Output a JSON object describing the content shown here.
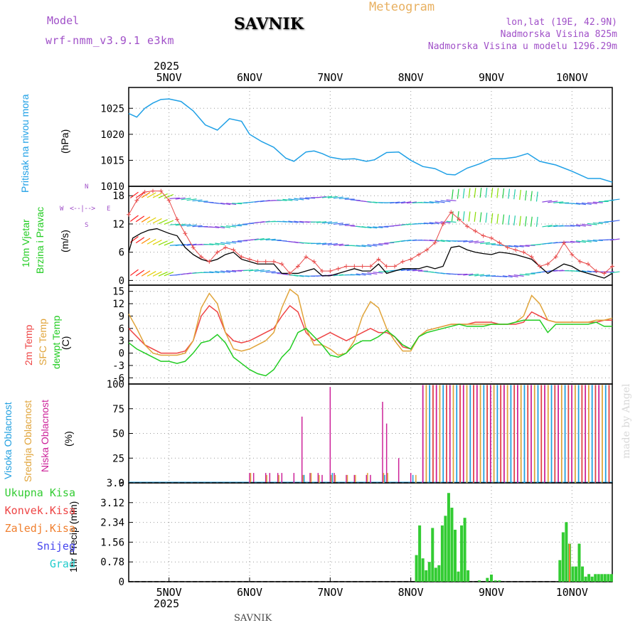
{
  "header": {
    "model_label": "Model",
    "model_name": "wrf-nmm_v3.9.1 e3km",
    "station": "SAVNIK",
    "product": "Meteogram",
    "location": "lon,lat (19E, 42.9N)",
    "elevation": "Nadmorska Visina 825m",
    "model_elevation": "Nadmorska Visina u modelu 1296.29m",
    "year_top": "2025",
    "year_bottom": "2025",
    "footer_station": "SAVNIK",
    "watermark": "made by Angel"
  },
  "colors": {
    "pressure": "#1fa0e6",
    "wind_speed": "#000000",
    "wind_gust": "#e84848",
    "temp2m": "#ee4444",
    "sfc": "#e0a43a",
    "dew": "#22cc22",
    "high_cloud": "#22a0e0",
    "mid_cloud": "#e0a43a",
    "low_cloud": "#cc2299",
    "precip": "#33cc33",
    "conv": "#ee4444",
    "frozen": "#f08030",
    "snow": "#4444ee",
    "grad": "#22cccc"
  },
  "labels": {
    "pressure": [
      "Pritisak na nivou mora",
      "(hPa)"
    ],
    "wind": [
      "10m Vjetar",
      "Brzina i Pravac",
      "(m/s)"
    ],
    "temp": [
      "2m Temp",
      "SFC Temp",
      "dewpt Temp",
      "(C)"
    ],
    "cloud": [
      "Visoka Oblacnost",
      "Srednja Oblacnost",
      "Niska Oblacnost",
      "(%)"
    ],
    "precip_axis": "1hr Precip (mm)",
    "precip_legend": [
      "Ukupna Kisa",
      "Konvek.Kisa",
      "Zaledj.Kisa",
      "Snijeg",
      "Grad"
    ],
    "compass": {
      "n": "N",
      "s": "S",
      "w": "W",
      "e": "E",
      "arrows": "<--|-->"
    }
  },
  "chart_data": [
    {
      "type": "line",
      "title": "Pritisak na nivou mora",
      "ylabel": "(hPa)",
      "x_days": [
        "5NOV",
        "6NOV",
        "7NOV",
        "8NOV",
        "9NOV",
        "10NOV"
      ],
      "x_start_day": 4.5,
      "x_end_day": 10.5,
      "ylim": [
        1010,
        1029
      ],
      "yticks": [
        1010,
        1015,
        1020,
        1025
      ],
      "x": [
        4.5,
        4.6,
        4.7,
        4.8,
        4.9,
        5.0,
        5.15,
        5.3,
        5.45,
        5.6,
        5.75,
        5.9,
        6.0,
        6.15,
        6.3,
        6.45,
        6.55,
        6.7,
        6.8,
        6.9,
        7.0,
        7.15,
        7.3,
        7.45,
        7.55,
        7.7,
        7.85,
        8.0,
        8.15,
        8.3,
        8.45,
        8.55,
        8.7,
        8.85,
        9.0,
        9.15,
        9.3,
        9.45,
        9.6,
        9.8,
        10.0,
        10.2,
        10.35,
        10.5
      ],
      "series": [
        {
          "name": "Pritisak",
          "values": [
            1024,
            1023.3,
            1025,
            1026,
            1026.7,
            1026.8,
            1026.3,
            1024.5,
            1021.8,
            1020.8,
            1023,
            1022.5,
            1020,
            1018.6,
            1017.5,
            1015.4,
            1014.8,
            1016.6,
            1016.8,
            1016.3,
            1015.6,
            1015.2,
            1015.3,
            1014.8,
            1015.1,
            1016.5,
            1016.6,
            1015,
            1013.8,
            1013.4,
            1012.3,
            1012.2,
            1013.5,
            1014.3,
            1015.3,
            1015.3,
            1015.6,
            1016.3,
            1014.8,
            1014.1,
            1012.9,
            1011.5,
            1011.5,
            1010.8
          ]
        }
      ]
    },
    {
      "type": "line",
      "title": "10m Vjetar Brzina i Pravac",
      "ylabel": "(m/s)",
      "x_start_day": 4.5,
      "x_end_day": 10.5,
      "ylim": [
        -1,
        20
      ],
      "yticks": [
        0,
        6,
        12,
        18
      ],
      "series": [
        {
          "name": "brzina",
          "x": [
            4.5,
            4.55,
            4.65,
            4.75,
            4.85,
            5.0,
            5.1,
            5.2,
            5.3,
            5.4,
            5.5,
            5.6,
            5.7,
            5.8,
            5.9,
            6.0,
            6.1,
            6.2,
            6.3,
            6.4,
            6.5,
            6.6,
            6.7,
            6.8,
            6.9,
            7.0,
            7.1,
            7.2,
            7.3,
            7.4,
            7.5,
            7.6,
            7.7,
            7.8,
            7.9,
            8.0,
            8.1,
            8.2,
            8.3,
            8.4,
            8.5,
            8.6,
            8.7,
            8.8,
            8.9,
            9.0,
            9.1,
            9.2,
            9.3,
            9.4,
            9.5,
            9.6,
            9.7,
            9.8,
            9.9,
            10.0,
            10.1,
            10.2,
            10.3,
            10.4,
            10.5
          ],
          "values": [
            6,
            9,
            10,
            10.7,
            11,
            10,
            9.5,
            7,
            5.5,
            4.5,
            4,
            4.5,
            5.5,
            6,
            4.5,
            4,
            3.5,
            3.5,
            3.5,
            1.5,
            1.5,
            1.5,
            2,
            2.5,
            1,
            1,
            1.5,
            2,
            2.5,
            2,
            2,
            3.5,
            1.5,
            2,
            2.5,
            2.5,
            2.5,
            3,
            2.5,
            3,
            7,
            7.3,
            6.5,
            6,
            5.7,
            5.5,
            6,
            5.8,
            5.5,
            5,
            4.5,
            3,
            1.5,
            2.5,
            3.5,
            3,
            2,
            1.5,
            1,
            0.5,
            1.5
          ]
        },
        {
          "name": "udar",
          "x": [
            4.5,
            4.6,
            4.7,
            4.8,
            4.9,
            5.0,
            5.1,
            5.2,
            5.3,
            5.4,
            5.5,
            5.6,
            5.7,
            5.8,
            5.9,
            6.0,
            6.1,
            6.2,
            6.3,
            6.4,
            6.5,
            6.6,
            6.7,
            6.8,
            6.9,
            7.0,
            7.1,
            7.2,
            7.3,
            7.4,
            7.5,
            7.6,
            7.7,
            7.8,
            7.9,
            8.0,
            8.1,
            8.2,
            8.3,
            8.4,
            8.5,
            8.6,
            8.7,
            8.8,
            8.9,
            9.0,
            9.1,
            9.2,
            9.3,
            9.4,
            9.5,
            9.6,
            9.7,
            9.8,
            9.9,
            10.0,
            10.1,
            10.2,
            10.3,
            10.4,
            10.5
          ],
          "values": [
            14,
            17,
            18.8,
            19,
            19,
            17,
            13,
            10,
            7,
            5,
            4,
            6,
            7,
            6.5,
            5,
            4.5,
            4,
            4,
            4,
            3.5,
            1.5,
            3,
            5,
            4,
            2,
            2,
            2.5,
            3,
            3,
            3,
            3,
            4.5,
            3,
            3,
            4,
            4.5,
            5.5,
            6.5,
            8,
            12,
            14.5,
            13,
            11.5,
            10.5,
            9.5,
            9,
            8,
            7,
            6.5,
            6,
            5,
            3,
            3.5,
            5,
            8,
            5.5,
            4,
            3.5,
            2,
            1.5,
            3
          ]
        }
      ]
    },
    {
      "type": "line",
      "title": "2m Temp / SFC Temp / dewpt Temp",
      "ylabel": "(C)",
      "x_start_day": 4.5,
      "x_end_day": 10.5,
      "ylim": [
        -7.5,
        16.5
      ],
      "yticks": [
        -6,
        -3,
        0,
        3,
        6,
        9,
        12,
        15
      ],
      "x": [
        4.5,
        4.6,
        4.7,
        4.8,
        4.9,
        5.0,
        5.1,
        5.2,
        5.3,
        5.4,
        5.5,
        5.6,
        5.7,
        5.8,
        5.9,
        6.0,
        6.1,
        6.2,
        6.3,
        6.4,
        6.5,
        6.6,
        6.7,
        6.8,
        6.9,
        7.0,
        7.1,
        7.2,
        7.3,
        7.4,
        7.5,
        7.6,
        7.7,
        7.8,
        7.9,
        8.0,
        8.1,
        8.2,
        8.3,
        8.4,
        8.5,
        8.6,
        8.7,
        8.8,
        8.9,
        9.0,
        9.1,
        9.2,
        9.3,
        9.4,
        9.5,
        9.6,
        9.7,
        9.8,
        9.9,
        10.0,
        10.1,
        10.2,
        10.3,
        10.4,
        10.5
      ],
      "series": [
        {
          "name": "2m Temp",
          "values": [
            6,
            4,
            2,
            1,
            0,
            0,
            0,
            0.5,
            3,
            9,
            11.5,
            10,
            5,
            3,
            2.5,
            3,
            4,
            5,
            6,
            9,
            11.5,
            10,
            5,
            3,
            4,
            5,
            4,
            3,
            4,
            5,
            6,
            5,
            5,
            4,
            1.5,
            1,
            4,
            5.5,
            6,
            6.5,
            7,
            7,
            7,
            7.5,
            7.5,
            7.5,
            7,
            7,
            7,
            7.5,
            10,
            9,
            8,
            7.5,
            7.5,
            7.5,
            7.5,
            7.5,
            7.5,
            8,
            8
          ]
        },
        {
          "name": "SFC Temp",
          "values": [
            9.5,
            6,
            2,
            0,
            -0.5,
            -0.5,
            -0.5,
            0,
            3,
            11,
            14.5,
            12,
            5,
            1,
            0.5,
            1,
            2,
            3,
            5,
            11,
            15.5,
            14,
            6,
            2,
            2,
            1,
            -0.5,
            0,
            3,
            9,
            12.5,
            11,
            6,
            3,
            0.5,
            0.5,
            4,
            5.5,
            6,
            6.5,
            7,
            7,
            7,
            7,
            7,
            7,
            7,
            7,
            7.5,
            9,
            14,
            12,
            8,
            7.5,
            7.5,
            7.5,
            7.5,
            7.5,
            8,
            8,
            8.5
          ]
        },
        {
          "name": "dewpt Temp",
          "values": [
            2.5,
            1,
            0,
            -1,
            -2,
            -2,
            -2.5,
            -2,
            0,
            2.5,
            3,
            4.5,
            2.5,
            -1,
            -2.5,
            -4,
            -5,
            -5.5,
            -4,
            -1,
            1,
            5,
            6,
            4,
            2,
            -0.5,
            -1,
            0,
            2,
            3,
            3,
            4,
            5.5,
            4,
            2,
            1,
            4,
            5,
            5.5,
            6,
            6.5,
            7,
            6.5,
            6.5,
            6.5,
            7,
            7,
            7,
            7.5,
            8,
            8,
            8,
            5,
            7,
            7,
            7,
            7,
            7,
            7.5,
            6.5,
            6.5
          ]
        }
      ]
    },
    {
      "type": "bar",
      "title": "Visoka / Srednja / Niska Oblacnost",
      "ylabel": "(%)",
      "x_start_day": 4.5,
      "x_end_day": 10.5,
      "ylim": [
        0,
        100
      ],
      "yticks": [
        0,
        25,
        50,
        75,
        100
      ],
      "series": [
        {
          "name": "Niska Oblacnost",
          "x": [
            6.0,
            6.05,
            6.2,
            6.25,
            6.35,
            6.4,
            6.55,
            6.65,
            6.75,
            6.85,
            6.9,
            7.0,
            7.05,
            7.2,
            7.3,
            7.45,
            7.5,
            7.65,
            7.7,
            7.85,
            8.0
          ],
          "values": [
            10,
            10,
            10,
            10,
            10,
            10,
            10,
            67,
            10,
            10,
            8,
            97,
            10,
            8,
            8,
            8,
            8,
            82,
            60,
            25,
            10
          ]
        },
        {
          "name": "Srednja Oblacnost",
          "x": [
            6.0,
            6.2,
            6.35,
            6.65,
            6.75,
            6.85,
            7.0,
            7.05,
            7.2,
            7.3,
            7.45,
            7.65,
            7.7,
            8.05
          ],
          "values": [
            10,
            8,
            8,
            8,
            10,
            8,
            8,
            8,
            8,
            8,
            10,
            10,
            10,
            8
          ]
        },
        {
          "name": "Visoka Oblacnost",
          "x": [
            6.65,
            7.0,
            7.65,
            8.0
          ],
          "values": [
            8,
            10,
            8,
            8
          ]
        }
      ],
      "dense_from_day": 8.15,
      "dense_value": 99
    },
    {
      "type": "bar",
      "title": "1hr Precip",
      "ylabel": "1hr Precip (mm)",
      "x_start_day": 4.5,
      "x_end_day": 10.5,
      "ylim": [
        0,
        3.9
      ],
      "yticks": [
        0,
        0.78,
        1.56,
        2.34,
        3.12,
        3.9
      ],
      "series": [
        {
          "name": "Ukupna Kisa",
          "x": [
            8.07,
            8.11,
            8.15,
            8.19,
            8.23,
            8.27,
            8.31,
            8.35,
            8.39,
            8.43,
            8.47,
            8.51,
            8.55,
            8.59,
            8.63,
            8.67,
            8.71,
            8.85,
            8.95,
            9.0,
            9.05,
            9.1,
            9.85,
            9.89,
            9.93,
            9.97,
            10.01,
            10.05,
            10.09,
            10.13,
            10.17,
            10.21,
            10.25,
            10.29,
            10.33,
            10.37,
            10.41,
            10.45,
            10.49
          ],
          "values": [
            1.05,
            2.22,
            0.92,
            0.45,
            0.78,
            2.12,
            0.55,
            0.65,
            2.22,
            2.6,
            3.5,
            2.92,
            2.05,
            0.4,
            2.22,
            2.52,
            0.45,
            0.05,
            0.15,
            0.28,
            0.05,
            0.05,
            0.85,
            1.95,
            2.35,
            1.5,
            0.6,
            0.6,
            1.5,
            0.6,
            0.2,
            0.3,
            0.2,
            0.3,
            0.3,
            0.3,
            0.3,
            0.3,
            0.3
          ]
        }
      ],
      "conv_series": {
        "x": [
          9.97
        ],
        "values": [
          1.5
        ]
      }
    }
  ]
}
